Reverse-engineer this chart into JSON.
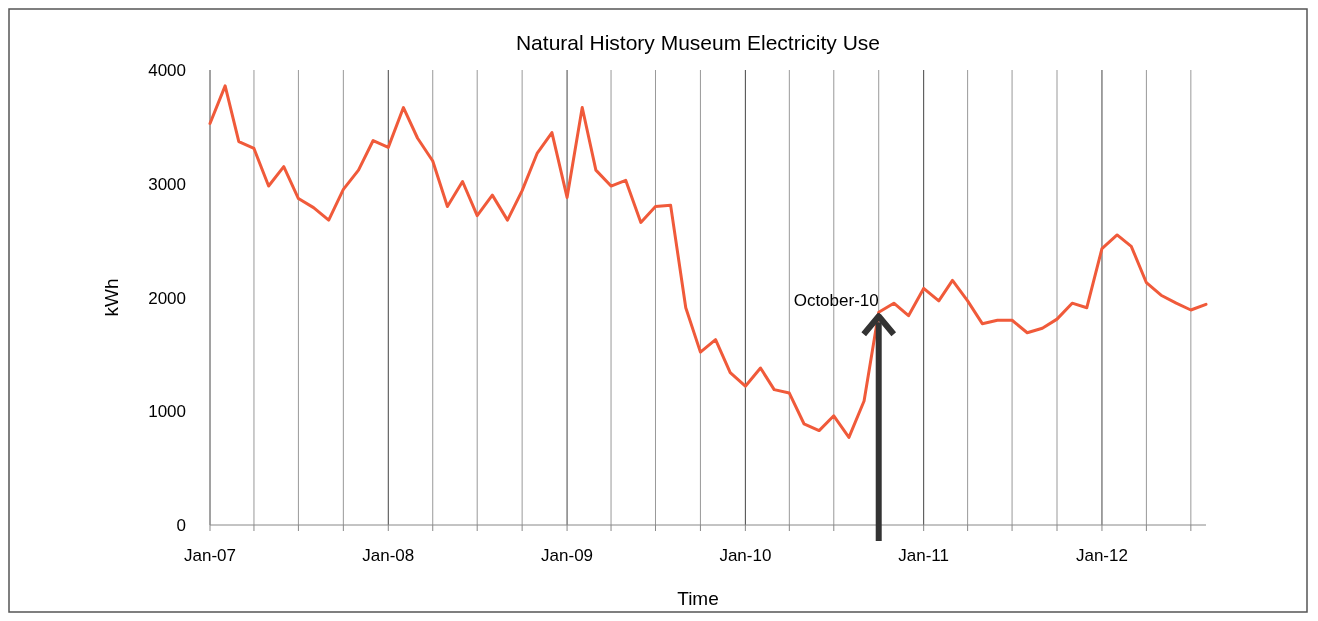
{
  "chart_data": {
    "type": "line",
    "title": "Natural History Museum Electricity Use",
    "xlabel": "Time",
    "ylabel": "kWh",
    "x": [
      "2007-01",
      "2007-02",
      "2007-03",
      "2007-04",
      "2007-05",
      "2007-06",
      "2007-07",
      "2007-08",
      "2007-09",
      "2007-10",
      "2007-11",
      "2007-12",
      "2008-01",
      "2008-02",
      "2008-03",
      "2008-04",
      "2008-05",
      "2008-06",
      "2008-07",
      "2008-08",
      "2008-09",
      "2008-10",
      "2008-11",
      "2008-12",
      "2009-01",
      "2009-02",
      "2009-03",
      "2009-04",
      "2009-05",
      "2009-06",
      "2009-07",
      "2009-08",
      "2009-09",
      "2009-10",
      "2009-11",
      "2009-12",
      "2010-01",
      "2010-02",
      "2010-03",
      "2010-04",
      "2010-05",
      "2010-06",
      "2010-07",
      "2010-08",
      "2010-09",
      "2010-10",
      "2010-11",
      "2010-12",
      "2011-01",
      "2011-02",
      "2011-03",
      "2011-04",
      "2011-05",
      "2011-06",
      "2011-07",
      "2011-08",
      "2011-09",
      "2011-10",
      "2011-11",
      "2011-12",
      "2012-01",
      "2012-02",
      "2012-03",
      "2012-04",
      "2012-05",
      "2012-06",
      "2012-07",
      "2012-08"
    ],
    "series": [
      {
        "color": "#f05a3a",
        "values": [
          3530,
          3860,
          3370,
          3310,
          2980,
          3150,
          2870,
          2790,
          2680,
          2950,
          3120,
          3380,
          3320,
          3670,
          3400,
          3200,
          2800,
          3020,
          2720,
          2900,
          2680,
          2940,
          3270,
          3450,
          2880,
          3670,
          3120,
          2980,
          3030,
          2660,
          2800,
          2810,
          1910,
          1520,
          1630,
          1340,
          1220,
          1380,
          1190,
          1160,
          890,
          830,
          960,
          770,
          1090,
          1870,
          1950,
          1840,
          2080,
          1970,
          2150,
          1970,
          1770,
          1800,
          1800,
          1690,
          1730,
          1810,
          1950,
          1910,
          2430,
          2550,
          2450,
          2130,
          2020,
          1950,
          1890,
          1940
        ]
      }
    ],
    "xlim": [
      "2007-01",
      "2012-08"
    ],
    "xticks": [
      {
        "value": "2007-01",
        "label": "Jan-07"
      },
      {
        "value": "2007-04",
        "label": null
      },
      {
        "value": "2007-07",
        "label": null
      },
      {
        "value": "2007-10",
        "label": null
      },
      {
        "value": "2008-01",
        "label": "Jan-08"
      },
      {
        "value": "2008-04",
        "label": null
      },
      {
        "value": "2008-07",
        "label": null
      },
      {
        "value": "2008-10",
        "label": null
      },
      {
        "value": "2009-01",
        "label": "Jan-09"
      },
      {
        "value": "2009-04",
        "label": null
      },
      {
        "value": "2009-07",
        "label": null
      },
      {
        "value": "2009-10",
        "label": null
      },
      {
        "value": "2010-01",
        "label": "Jan-10"
      },
      {
        "value": "2010-04",
        "label": null
      },
      {
        "value": "2010-07",
        "label": null
      },
      {
        "value": "2010-10",
        "label": null
      },
      {
        "value": "2011-01",
        "label": "Jan-11"
      },
      {
        "value": "2011-04",
        "label": null
      },
      {
        "value": "2011-07",
        "label": null
      },
      {
        "value": "2011-10",
        "label": null
      },
      {
        "value": "2012-01",
        "label": "Jan-12"
      },
      {
        "value": "2012-04",
        "label": null
      },
      {
        "value": "2012-07",
        "label": null
      }
    ],
    "ylim": [
      0,
      4000
    ],
    "yticks": [
      0,
      1000,
      2000,
      3000,
      4000
    ],
    "grid": "x",
    "marker": "none",
    "line_style": "solid",
    "annotations": [
      {
        "text": "October-10",
        "x": "2010-10",
        "y": 1870
      }
    ]
  }
}
